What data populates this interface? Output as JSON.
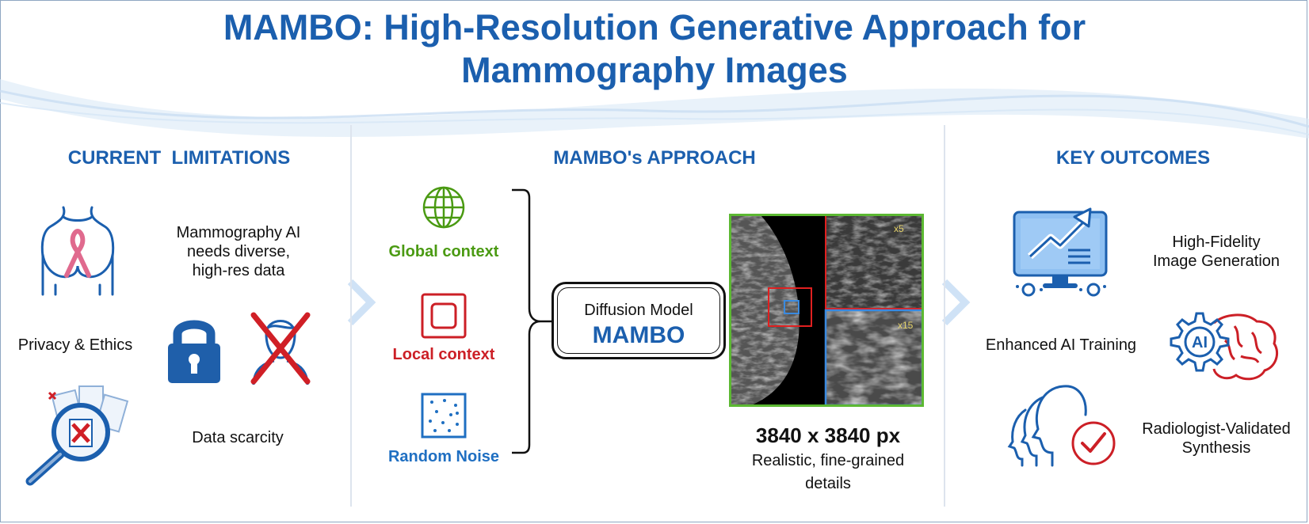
{
  "title": {
    "line1": "MAMBO: High-Resolution Generative Approach for",
    "line2": "Mammography Images"
  },
  "limitations": {
    "heading": "CURRENT  LIMITATIONS",
    "needs_line1": "Mammography AI",
    "needs_line2": "needs diverse,",
    "needs_line3": "high-res data",
    "privacy": "Privacy & Ethics",
    "scarcity": "Data scarcity",
    "icons": [
      "breast-cancer-ribbon-icon",
      "padlock-icon",
      "crossed-person-icon",
      "magnifier-documents-icon"
    ]
  },
  "approach": {
    "heading": "MAMBO's APPROACH",
    "inputs": [
      {
        "label": "Global context",
        "icon": "globe-icon",
        "color": "#4a9a12"
      },
      {
        "label": "Local context",
        "icon": "square-icon",
        "color": "#cc1f26"
      },
      {
        "label": "Random Noise",
        "icon": "noise-icon",
        "color": "#1f6fc2"
      }
    ],
    "model_top": "Diffusion Model",
    "model_name": "MAMBO",
    "zoom_5": "x5",
    "zoom_15": "x15",
    "resolution": "3840 x 3840 px",
    "caption_line1": "Realistic, fine-grained",
    "caption_line2": "details"
  },
  "outcomes": {
    "heading": "KEY OUTCOMES",
    "fidelity_line1": "High-Fidelity",
    "fidelity_line2": "Image Generation",
    "training": "Enhanced AI Training",
    "validated_line1": "Radiologist-Validated",
    "validated_line2": "Synthesis",
    "ai_label": "AI",
    "icons": [
      "monitor-chart-icon",
      "ai-gear-brain-icon",
      "radiologist-check-icon"
    ]
  },
  "colors": {
    "brand_blue": "#1b5fae",
    "green": "#4a9a12",
    "red": "#cc1f26",
    "noise_blue": "#1f6fc2"
  }
}
